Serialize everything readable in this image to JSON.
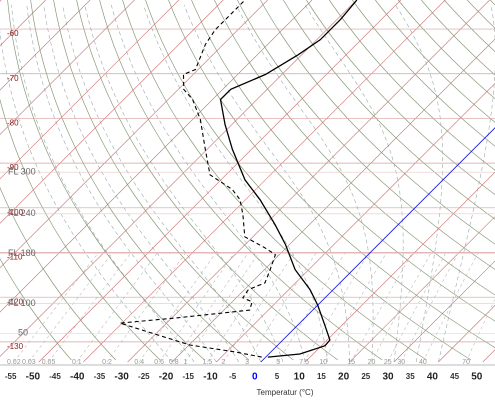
{
  "chart_data": {
    "type": "skew-t",
    "x_label": "Temperatur (°C)",
    "xlim": [
      -57.4,
      54.1
    ],
    "xticks": [
      -55,
      -50,
      -45,
      -40,
      -35,
      -30,
      -25,
      -20,
      -15,
      -10,
      -5,
      0,
      5,
      10,
      15,
      20,
      25,
      30,
      35,
      40,
      45,
      50
    ],
    "zero_color": "#0000ff",
    "ylim": [
      1013.25,
      100
    ],
    "log_scale": true,
    "left_ylim": [
      -53.5,
      -134.5
    ],
    "left_labels": [
      -130,
      -120,
      -110,
      -100,
      -90,
      -80,
      -70,
      -60
    ],
    "left_color": "#8b1a1a",
    "flight_levels": [
      {
        "value": 300,
        "label": "FL 300"
      },
      {
        "value": 240,
        "label": "FL 240"
      },
      {
        "value": 180,
        "label": "FL 180"
      },
      {
        "value": 100,
        "label": "FL 100"
      },
      50
    ],
    "mixing_ratios": [
      0.02,
      0.03,
      0.05,
      0.1,
      0.2,
      0.4,
      0.6,
      0.8,
      1,
      1.5,
      2,
      3,
      5,
      7.5,
      10,
      15,
      20,
      25,
      30,
      40,
      70
    ],
    "series": [
      {
        "color": "#000000",
        "dash": false,
        "p": [
          982,
          963,
          913,
          880,
          800,
          704,
          638,
          561,
          478,
          421,
          359,
          316,
          260,
          222,
          189,
          177,
          161,
          142,
          129,
          113,
          100
        ],
        "values": [
          0.5,
          7,
          10.8,
          10.6,
          6.1,
          0,
          -5.2,
          -13.1,
          -20.9,
          -27.7,
          -36.7,
          -44.6,
          -54.3,
          -61.5,
          -68.2,
          -68.2,
          -63.7,
          -60.8,
          -59.2,
          -59.2,
          -59.9
        ]
      },
      {
        "color": "#000000",
        "dash": true,
        "p": [
          982,
          950,
          909,
          790,
          765,
          727,
          690,
          672,
          638,
          611,
          561,
          510,
          488,
          455,
          395,
          359,
          336,
          306,
          260,
          215,
          189,
          177,
          161,
          156,
          133,
          121,
          106,
          100
        ],
        "values": [
          -0.9,
          -8.1,
          -19.8,
          -40.5,
          -29.3,
          -14.2,
          -15.5,
          -18.5,
          -19.1,
          -16.9,
          -18.7,
          -20.9,
          -24.8,
          -31.8,
          -37.2,
          -41.2,
          -45.3,
          -53.6,
          -60.4,
          -68.2,
          -74.5,
          -78.8,
          -82.2,
          -80.6,
          -84,
          -85.1,
          -85.1,
          -85.1
        ]
      }
    ]
  }
}
